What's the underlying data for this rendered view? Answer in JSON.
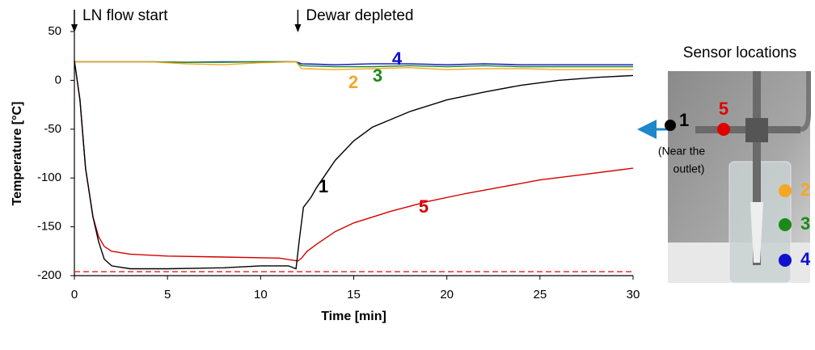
{
  "chart_data": {
    "type": "line",
    "x_label": "Time [min]",
    "y_label": "Temperature [°C]",
    "xlim": [
      0,
      30
    ],
    "xticks": [
      0,
      5,
      10,
      15,
      20,
      25,
      30
    ],
    "ylim": [
      -200,
      50
    ],
    "yticks": [
      -200,
      -150,
      -100,
      -50,
      0,
      50
    ],
    "grid": false,
    "annotations": [
      {
        "text": "LN flow start",
        "x": 0
      },
      {
        "text": "Dewar depleted",
        "x": 12
      }
    ],
    "reference_line": {
      "value": -196,
      "color": "#e03030"
    },
    "series": [
      {
        "name": "1",
        "color": "#000000",
        "x": [
          0,
          0.3,
          0.6,
          1.0,
          1.3,
          1.6,
          2,
          3,
          5,
          8,
          10,
          11.5,
          11.9,
          12.1,
          12.3,
          12.7,
          13,
          14,
          15,
          16,
          18,
          20,
          22,
          24,
          26,
          28,
          30
        ],
        "values": [
          20,
          -20,
          -90,
          -140,
          -165,
          -183,
          -190,
          -193,
          -193,
          -192,
          -190,
          -190,
          -193,
          -160,
          -130,
          -120,
          -110,
          -82,
          -62,
          -48,
          -32,
          -20,
          -12,
          -5,
          0,
          3,
          5
        ]
      },
      {
        "name": "5",
        "color": "#d40000",
        "x": [
          0,
          0.3,
          0.6,
          1.0,
          1.3,
          1.6,
          2,
          3,
          5,
          8,
          11,
          12,
          12.2,
          12.5,
          13,
          14,
          15,
          17,
          19,
          21,
          23,
          25,
          27.5,
          30
        ],
        "values": [
          20,
          -20,
          -90,
          -140,
          -160,
          -170,
          -175,
          -178,
          -180,
          -181,
          -182,
          -185,
          -182,
          -175,
          -168,
          -155,
          -146,
          -134,
          -124,
          -116,
          -109,
          -102,
          -96,
          -90
        ]
      },
      {
        "name": "2",
        "color": "#f5a623",
        "x": [
          0,
          2,
          4,
          6,
          8,
          10,
          11.9,
          12.2,
          14,
          16,
          18,
          20,
          22,
          24,
          26,
          28,
          30
        ],
        "values": [
          19,
          19,
          19,
          17,
          16,
          18,
          19,
          12,
          11,
          12,
          13,
          11,
          12,
          12,
          11,
          11,
          11
        ]
      },
      {
        "name": "3",
        "color": "#1a8a1a",
        "x": [
          0,
          2,
          4,
          6,
          8,
          10,
          11.9,
          12.2,
          14,
          16,
          18,
          20,
          22,
          24,
          26,
          28,
          30
        ],
        "values": [
          19,
          19,
          19,
          18.5,
          18.5,
          19,
          19,
          15,
          14,
          14,
          15,
          14,
          15,
          14,
          14,
          14,
          14
        ]
      },
      {
        "name": "4",
        "color": "#1010d0",
        "x": [
          0,
          2,
          4,
          6,
          8,
          10,
          11.9,
          12.2,
          14,
          16,
          18,
          20,
          22,
          24,
          26,
          28,
          30
        ],
        "values": [
          19,
          19,
          19,
          18.5,
          19,
          19,
          19,
          17,
          16,
          17,
          17,
          16,
          17,
          16,
          16,
          16,
          16
        ]
      }
    ]
  },
  "sensor_panel": {
    "title": "Sensor locations",
    "note_line1": "(Near the",
    "note_line2": "outlet)",
    "sensors": [
      "1",
      "5",
      "2",
      "3",
      "4"
    ]
  }
}
